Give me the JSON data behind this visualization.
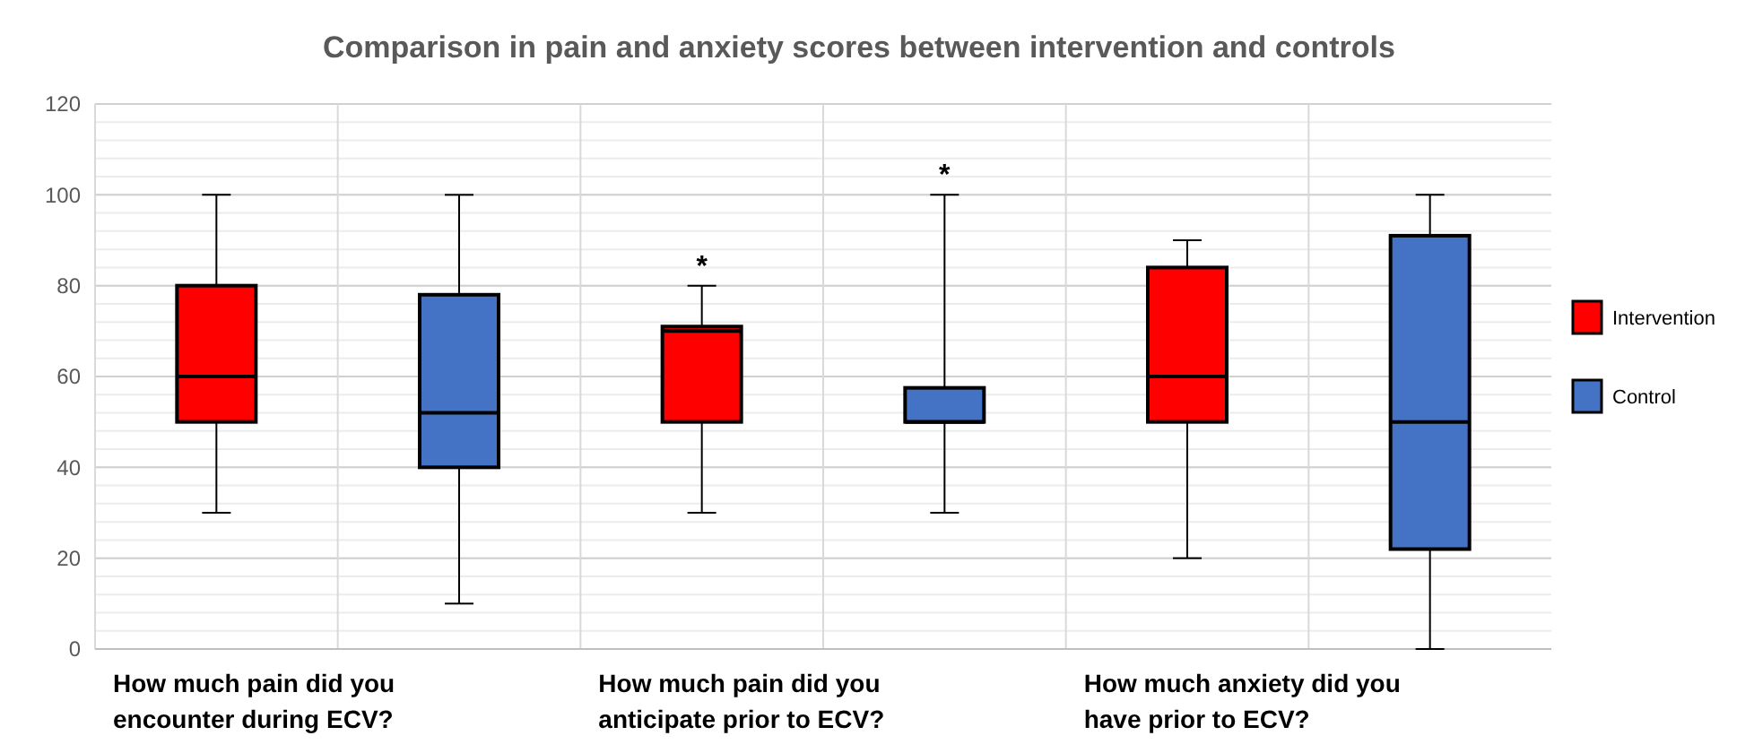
{
  "chart_data": {
    "type": "box",
    "title": "Comparison in pain and anxiety scores between intervention and controls",
    "categories": [
      "How much pain did you encounter during ECV?",
      "How much pain did you anticipate prior to ECV?",
      "How much anxiety did you have prior to ECV?"
    ],
    "series": [
      {
        "name": "Intervention",
        "color": "#ff0000",
        "boxes": [
          {
            "low": 30,
            "q1": 50,
            "median": 60,
            "q3": 80,
            "high": 100
          },
          {
            "low": 30,
            "q1": 50,
            "median": 70,
            "q3": 71,
            "high": 80
          },
          {
            "low": 20,
            "q1": 50,
            "median": 60,
            "q3": 84,
            "high": 90
          }
        ]
      },
      {
        "name": "Control",
        "color": "#4472c4",
        "boxes": [
          {
            "low": 10,
            "q1": 40,
            "median": 52,
            "q3": 78,
            "high": 100
          },
          {
            "low": 30,
            "q1": 50,
            "median": 50,
            "q3": 57.5,
            "high": 100
          },
          {
            "low": 0,
            "q1": 22,
            "median": 50,
            "q3": 91,
            "high": 100
          }
        ]
      }
    ],
    "ylim": [
      0,
      120
    ],
    "yticks": [
      0,
      20,
      40,
      60,
      80,
      100,
      120
    ],
    "grid": "y",
    "legend": "right",
    "annotations": [
      "*",
      "*"
    ]
  }
}
